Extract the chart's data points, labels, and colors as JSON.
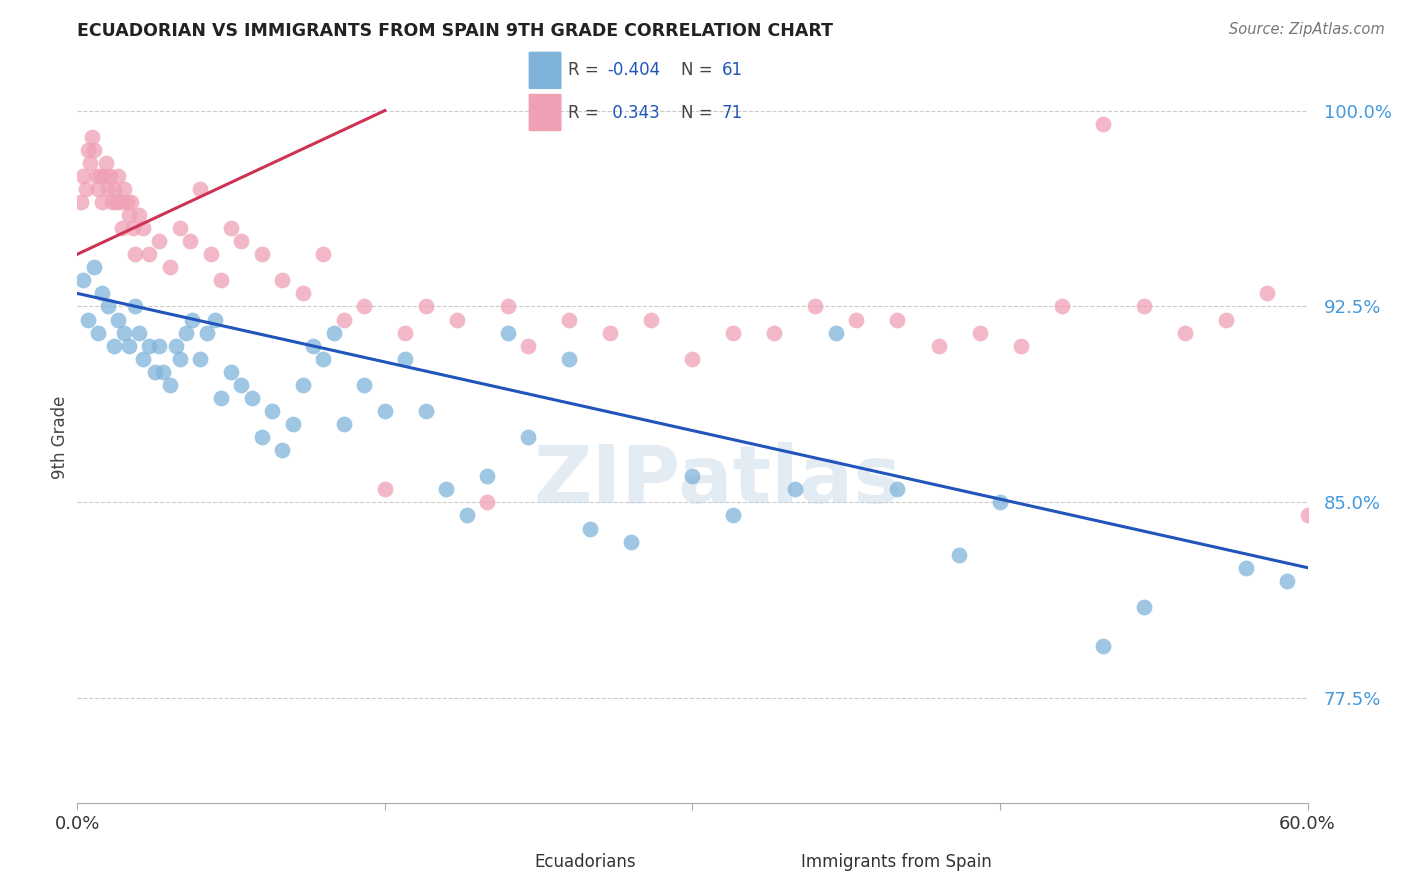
{
  "title": "ECUADORIAN VS IMMIGRANTS FROM SPAIN 9TH GRADE CORRELATION CHART",
  "source": "Source: ZipAtlas.com",
  "ylabel": "9th Grade",
  "yticks": [
    77.5,
    85.0,
    92.5,
    100.0
  ],
  "ytick_labels": [
    "77.5%",
    "85.0%",
    "92.5%",
    "100.0%"
  ],
  "xmin": 0.0,
  "xmax": 60.0,
  "ymin": 73.5,
  "ymax": 101.5,
  "blue_R": -0.404,
  "blue_N": 61,
  "pink_R": 0.343,
  "pink_N": 71,
  "blue_color": "#7fb3d9",
  "pink_color": "#f0a0b5",
  "blue_line_color": "#2255bb",
  "pink_line_color": "#cc3355",
  "legend_label_blue": "Ecuadorians",
  "legend_label_pink": "Immigrants from Spain",
  "watermark": "ZIPatlas",
  "blue_points_x": [
    0.3,
    0.5,
    0.8,
    1.0,
    1.2,
    1.5,
    1.8,
    2.0,
    2.3,
    2.5,
    2.8,
    3.0,
    3.2,
    3.5,
    3.8,
    4.0,
    4.2,
    4.5,
    4.8,
    5.0,
    5.3,
    5.6,
    6.0,
    6.3,
    6.7,
    7.0,
    7.5,
    8.0,
    8.5,
    9.0,
    9.5,
    10.0,
    10.5,
    11.0,
    11.5,
    12.0,
    12.5,
    13.0,
    14.0,
    15.0,
    16.0,
    17.0,
    18.0,
    19.0,
    20.0,
    21.0,
    22.0,
    24.0,
    25.0,
    27.0,
    30.0,
    32.0,
    35.0,
    37.0,
    40.0,
    43.0,
    45.0,
    50.0,
    52.0,
    57.0,
    59.0
  ],
  "blue_points_y": [
    93.5,
    92.0,
    94.0,
    91.5,
    93.0,
    92.5,
    91.0,
    92.0,
    91.5,
    91.0,
    92.5,
    91.5,
    90.5,
    91.0,
    90.0,
    91.0,
    90.0,
    89.5,
    91.0,
    90.5,
    91.5,
    92.0,
    90.5,
    91.5,
    92.0,
    89.0,
    90.0,
    89.5,
    89.0,
    87.5,
    88.5,
    87.0,
    88.0,
    89.5,
    91.0,
    90.5,
    91.5,
    88.0,
    89.5,
    88.5,
    90.5,
    88.5,
    85.5,
    84.5,
    86.0,
    91.5,
    87.5,
    90.5,
    84.0,
    83.5,
    86.0,
    84.5,
    85.5,
    91.5,
    85.5,
    83.0,
    85.0,
    79.5,
    81.0,
    82.5,
    82.0
  ],
  "pink_points_x": [
    0.2,
    0.3,
    0.4,
    0.5,
    0.6,
    0.7,
    0.8,
    0.9,
    1.0,
    1.1,
    1.2,
    1.3,
    1.4,
    1.5,
    1.6,
    1.7,
    1.8,
    1.9,
    2.0,
    2.1,
    2.2,
    2.3,
    2.4,
    2.5,
    2.6,
    2.7,
    2.8,
    3.0,
    3.2,
    3.5,
    4.0,
    4.5,
    5.0,
    5.5,
    6.0,
    6.5,
    7.0,
    7.5,
    8.0,
    9.0,
    10.0,
    11.0,
    12.0,
    13.0,
    14.0,
    15.0,
    16.0,
    17.0,
    18.5,
    20.0,
    21.0,
    22.0,
    24.0,
    26.0,
    28.0,
    30.0,
    32.0,
    34.0,
    36.0,
    38.0,
    40.0,
    42.0,
    44.0,
    46.0,
    48.0,
    50.0,
    52.0,
    54.0,
    56.0,
    58.0,
    60.0
  ],
  "pink_points_y": [
    96.5,
    97.5,
    97.0,
    98.5,
    98.0,
    99.0,
    98.5,
    97.5,
    97.0,
    97.5,
    96.5,
    97.5,
    98.0,
    97.0,
    97.5,
    96.5,
    97.0,
    96.5,
    97.5,
    96.5,
    95.5,
    97.0,
    96.5,
    96.0,
    96.5,
    95.5,
    94.5,
    96.0,
    95.5,
    94.5,
    95.0,
    94.0,
    95.5,
    95.0,
    97.0,
    94.5,
    93.5,
    95.5,
    95.0,
    94.5,
    93.5,
    93.0,
    94.5,
    92.0,
    92.5,
    85.5,
    91.5,
    92.5,
    92.0,
    85.0,
    92.5,
    91.0,
    92.0,
    91.5,
    92.0,
    90.5,
    91.5,
    91.5,
    92.5,
    92.0,
    92.0,
    91.0,
    91.5,
    91.0,
    92.5,
    99.5,
    92.5,
    91.5,
    92.0,
    93.0,
    84.5
  ],
  "blue_trendline_x0": 0.0,
  "blue_trendline_x1": 60.0,
  "blue_trendline_y0": 93.0,
  "blue_trendline_y1": 82.5,
  "pink_trendline_x0": 0.0,
  "pink_trendline_x1": 15.0,
  "pink_trendline_y0": 94.5,
  "pink_trendline_y1": 100.0
}
